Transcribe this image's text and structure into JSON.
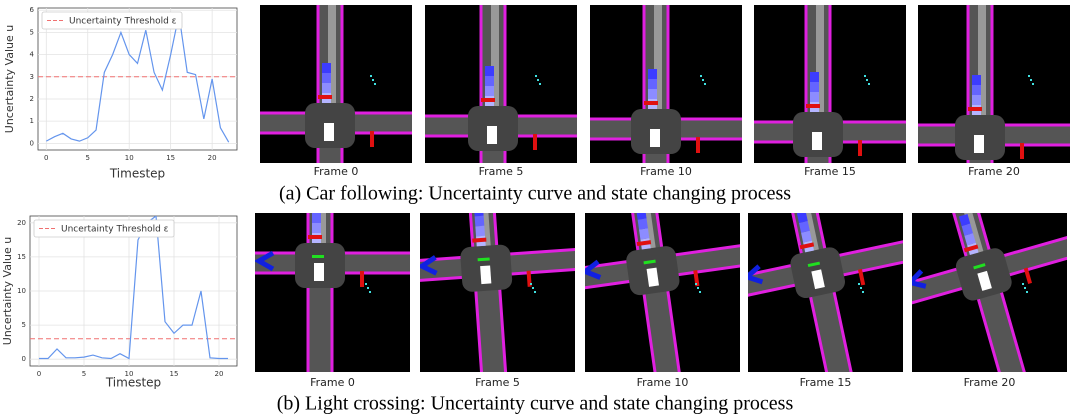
{
  "chart_data": [
    {
      "type": "line",
      "ylabel": "Uncertainty Value u",
      "xlabel": "Timestep",
      "x": [
        0,
        1,
        2,
        3,
        4,
        5,
        6,
        7,
        8,
        9,
        10,
        11,
        12,
        13,
        14,
        15,
        16,
        17,
        18,
        19,
        20,
        21,
        22
      ],
      "series": [
        {
          "color": "#6495ed",
          "values": [
            0.1,
            0.3,
            0.45,
            0.2,
            0.1,
            0.25,
            0.6,
            3.2,
            4.0,
            5.0,
            4.0,
            3.6,
            5.1,
            3.2,
            2.4,
            4.0,
            5.8,
            3.2,
            3.1,
            1.1,
            2.9,
            0.7,
            0.05
          ]
        }
      ],
      "threshold": {
        "name": "Uncertainty Threshold ε",
        "value": 3,
        "color": "#f07070"
      },
      "xlim": [
        -1,
        23
      ],
      "ylim": [
        -0.3,
        6.1
      ],
      "xticks": [
        0,
        5,
        10,
        15,
        20
      ],
      "yticks": [
        0,
        1,
        2,
        3,
        4,
        5,
        6
      ],
      "grid": true,
      "legend": "upper left"
    },
    {
      "type": "line",
      "ylabel": "Uncertainty Value u",
      "xlabel": "Timestep",
      "x": [
        0,
        1,
        2,
        3,
        4,
        5,
        6,
        7,
        8,
        9,
        10,
        11,
        12,
        13,
        14,
        15,
        16,
        17,
        18,
        19,
        20,
        21
      ],
      "series": [
        {
          "color": "#6495ed",
          "values": [
            0.1,
            0.1,
            1.5,
            0.2,
            0.2,
            0.3,
            0.6,
            0.2,
            0.1,
            0.8,
            0.1,
            17.5,
            20,
            21,
            5.5,
            3.8,
            5.0,
            5.0,
            10,
            0.2,
            0.1,
            0.1
          ]
        }
      ],
      "threshold": {
        "name": "Uncertainty Threshold ε",
        "value": 3,
        "color": "#f07070"
      },
      "xlim": [
        -1,
        22
      ],
      "ylim": [
        -1,
        21
      ],
      "xticks": [
        0,
        5,
        10,
        15,
        20
      ],
      "yticks": [
        0,
        5,
        10,
        15,
        20
      ],
      "grid": true,
      "legend": "upper left"
    }
  ],
  "rows": [
    {
      "frames": [
        "Frame 0",
        "Frame 5",
        "Frame 10",
        "Frame 15",
        "Frame 20"
      ],
      "caption": "(a)  Car following: Uncertainty curve and state changing process"
    },
    {
      "frames": [
        "Frame 0",
        "Frame 5",
        "Frame 10",
        "Frame 15",
        "Frame 20"
      ],
      "caption": "(b)  Light crossing: Uncertainty curve and state changing process"
    }
  ]
}
